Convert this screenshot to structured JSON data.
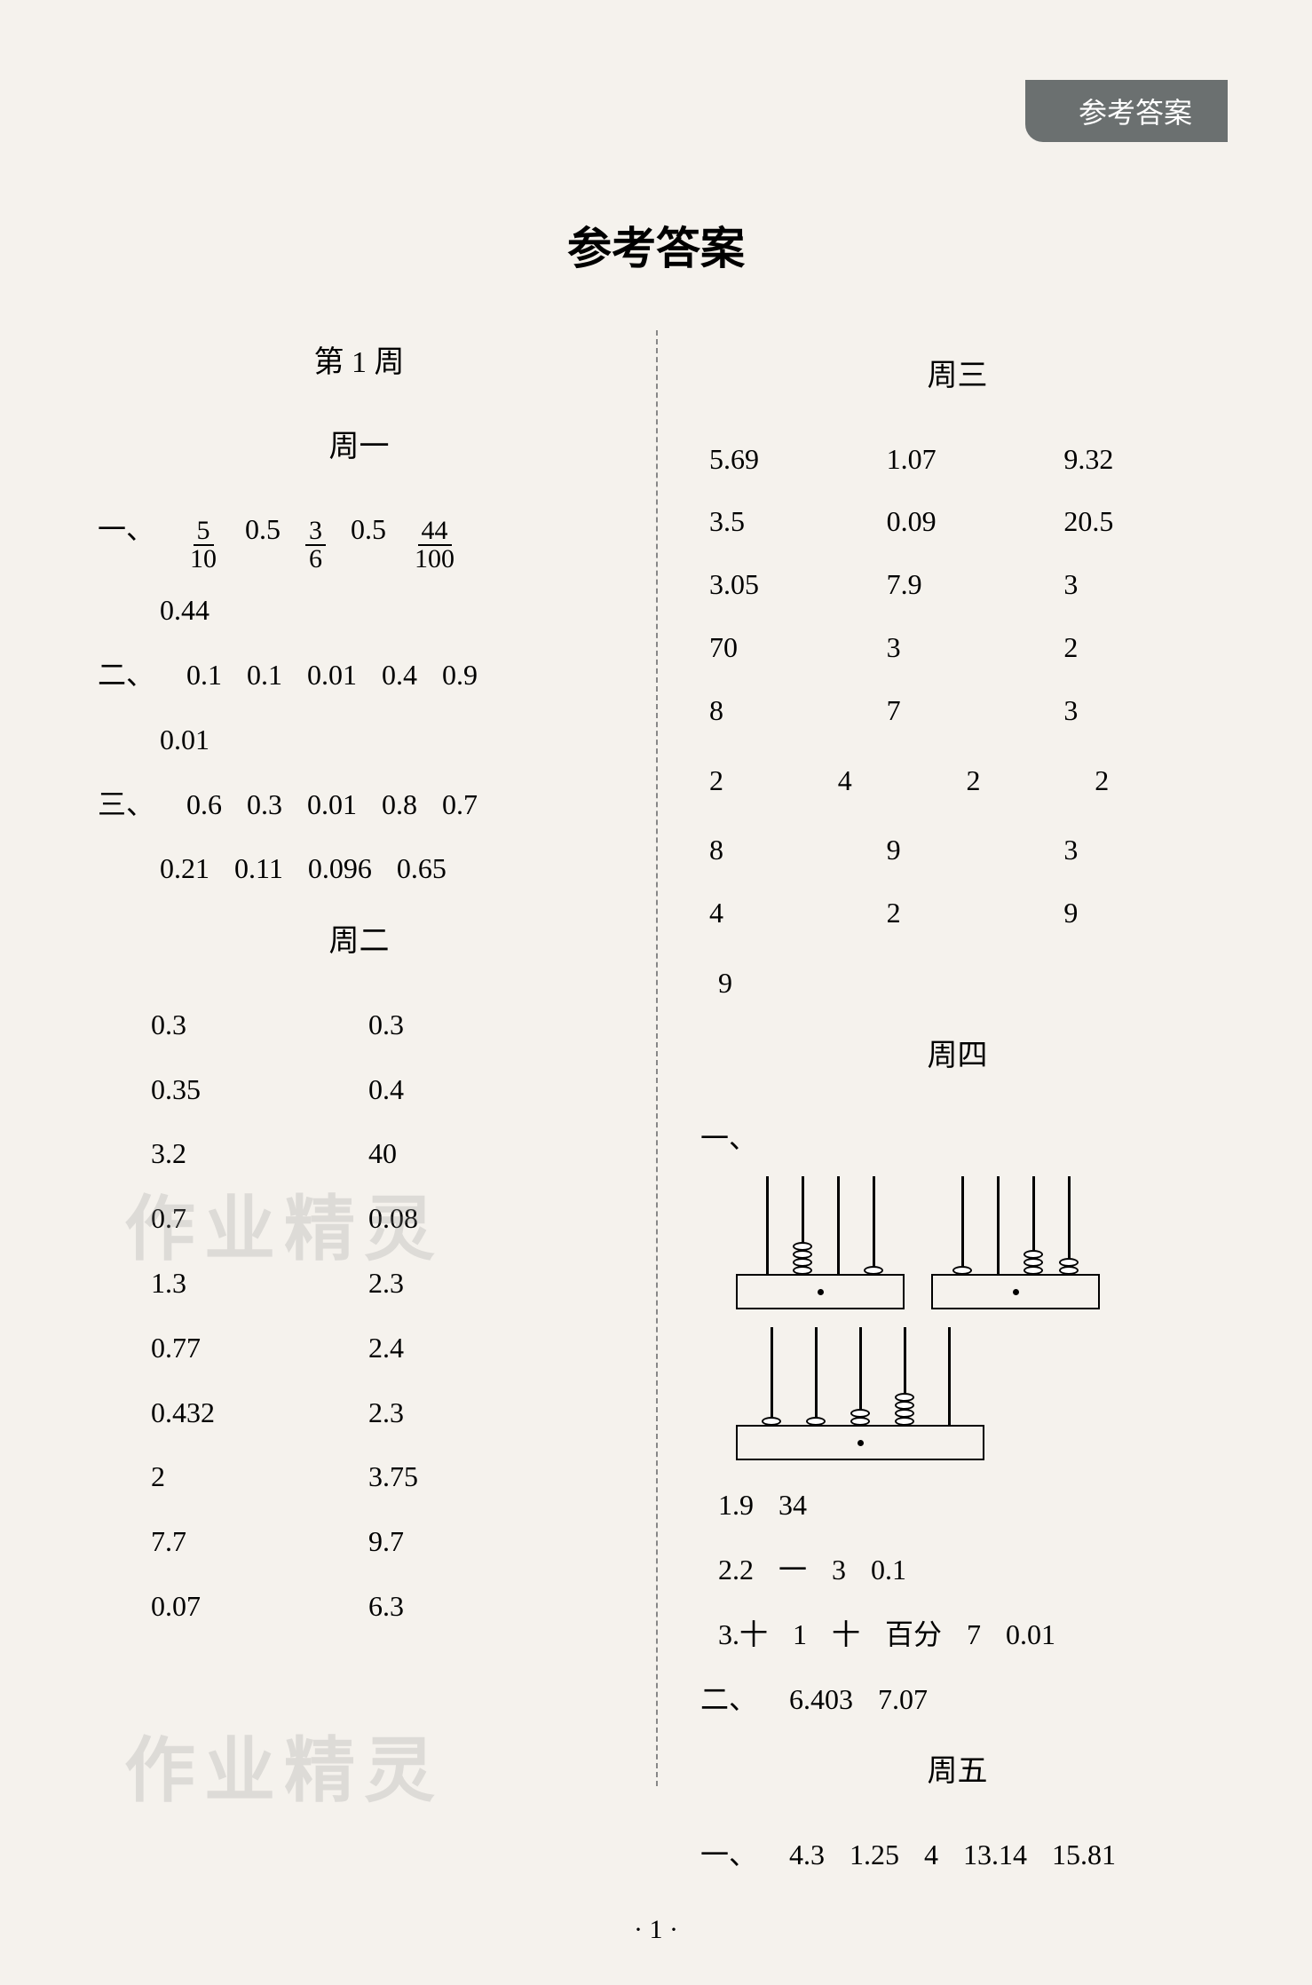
{
  "tab_label": "参考答案",
  "page_title": "参考答案",
  "page_number": "· 1 ·",
  "watermark_text": "作业精灵",
  "left": {
    "week_header": "第 1 周",
    "mon": {
      "header": "周一",
      "q1_marker": "一、",
      "q1": [
        "5",
        "10",
        "0.5",
        "3",
        "6",
        "0.5",
        "44",
        "100"
      ],
      "q1_line2": "0.44",
      "q2_marker": "二、",
      "q2_line1": [
        "0.1",
        "0.1",
        "0.01",
        "0.4",
        "0.9"
      ],
      "q2_line2": "0.01",
      "q3_marker": "三、",
      "q3_line1": [
        "0.6",
        "0.3",
        "0.01",
        "0.8",
        "0.7"
      ],
      "q3_line2": [
        "0.21",
        "0.11",
        "0.096",
        "0.65"
      ]
    },
    "tue": {
      "header": "周二",
      "rows": [
        [
          "0.3",
          "0.3"
        ],
        [
          "0.35",
          "0.4"
        ],
        [
          "3.2",
          "40"
        ],
        [
          "0.7",
          "0.08"
        ],
        [
          "1.3",
          "2.3"
        ],
        [
          "0.77",
          "2.4"
        ],
        [
          "0.432",
          "2.3"
        ],
        [
          "2",
          "3.75"
        ],
        [
          "7.7",
          "9.7"
        ],
        [
          "0.07",
          "6.3"
        ]
      ]
    }
  },
  "right": {
    "wed": {
      "header": "周三",
      "grid3_rows": [
        [
          "5.69",
          "1.07",
          "9.32"
        ],
        [
          "3.5",
          "0.09",
          "20.5"
        ],
        [
          "3.05",
          "7.9",
          "3"
        ],
        [
          "70",
          "3",
          "2"
        ],
        [
          "8",
          "7",
          "3"
        ]
      ],
      "grid4_row": [
        "2",
        "4",
        "2",
        "2"
      ],
      "grid3_rows2": [
        [
          "8",
          "9",
          "3"
        ],
        [
          "4",
          "2",
          "9"
        ]
      ],
      "last": "9"
    },
    "thu": {
      "header": "周四",
      "q1_marker": "一、",
      "abacus": [
        [
          0,
          4,
          0,
          1
        ],
        [
          1,
          0,
          3,
          2
        ],
        [
          1,
          1,
          2,
          4,
          0
        ]
      ],
      "line1": [
        "1.9",
        "34"
      ],
      "line2": [
        "2.2",
        "一",
        "3",
        "0.1"
      ],
      "line3": [
        "3.十",
        "1",
        "十",
        "百分",
        "7",
        "0.01"
      ],
      "q2_marker": "二、",
      "q2_vals": [
        "6.403",
        "7.07"
      ]
    },
    "fri": {
      "header": "周五",
      "q1_marker": "一、",
      "q1_vals": [
        "4.3",
        "1.25",
        "4",
        "13.14",
        "15.81"
      ]
    }
  }
}
